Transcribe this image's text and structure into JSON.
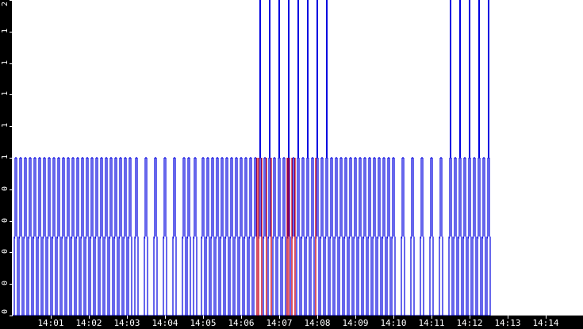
{
  "chart_data": {
    "type": "bar",
    "title": "",
    "xlabel": "",
    "ylabel": "",
    "ylim": [
      0,
      2
    ],
    "grid": false,
    "legend": [],
    "colors": {
      "primary": "#0000e0",
      "highlight": "#e00000",
      "axis_bg": "#000000",
      "axis_text": "#ffffff"
    },
    "y_ticks": [
      {
        "label": "2",
        "value": 2.0
      },
      {
        "label": "1",
        "value": 1.8
      },
      {
        "label": "1",
        "value": 1.6
      },
      {
        "label": "1",
        "value": 1.4
      },
      {
        "label": "1",
        "value": 1.2
      },
      {
        "label": "1",
        "value": 1.0
      },
      {
        "label": "0",
        "value": 0.8
      },
      {
        "label": "0",
        "value": 0.6
      },
      {
        "label": "0",
        "value": 0.4
      },
      {
        "label": "0",
        "value": 0.2
      },
      {
        "label": "0",
        "value": 0.0
      }
    ],
    "x_ticks": [
      {
        "label": "14:01",
        "px": 64
      },
      {
        "label": "14:02",
        "px": 112
      },
      {
        "label": "14:03",
        "px": 160
      },
      {
        "label": "14:04",
        "px": 208
      },
      {
        "label": "14:05",
        "px": 256
      },
      {
        "label": "14:06",
        "px": 304
      },
      {
        "label": "14:07",
        "px": 352
      },
      {
        "label": "14:08",
        "px": 400
      },
      {
        "label": "14:09",
        "px": 448
      },
      {
        "label": "14:10",
        "px": 496
      },
      {
        "label": "14:11",
        "px": 544
      },
      {
        "label": "14:12",
        "px": 592
      },
      {
        "label": "14:13",
        "px": 640
      },
      {
        "label": "14:14",
        "px": 688
      }
    ],
    "series": [
      {
        "name": "pulses",
        "description": "Pulse train: most pulses reach 1.0 with a 0.5 shoulder; tall pulses reach 2.0",
        "pulses_1": [
          20,
          26,
          32,
          38,
          44,
          50,
          56,
          62,
          68,
          74,
          80,
          86,
          92,
          98,
          104,
          110,
          116,
          122,
          128,
          134,
          140,
          146,
          152,
          158,
          164,
          172,
          184,
          196,
          208,
          220,
          232,
          238,
          246,
          256,
          262,
          268,
          274,
          280,
          286,
          292,
          298,
          304,
          310,
          316,
          322,
          328,
          334,
          340,
          346,
          352,
          358,
          364,
          370,
          376,
          382,
          388,
          394,
          400,
          406,
          412,
          418,
          424,
          430,
          436,
          442,
          448,
          454,
          460,
          466,
          472,
          478,
          484,
          490,
          496,
          508,
          520,
          532,
          544,
          556,
          568,
          574,
          580,
          586,
          592,
          598,
          604,
          610,
          616
        ],
        "pulses_2": [
          328,
          340,
          352,
          364,
          376,
          388,
          400,
          412,
          568,
          580,
          592,
          604,
          616
        ],
        "red_pulses": [
          324,
          326,
          330,
          336,
          342,
          362,
          364,
          368,
          372,
          398
        ]
      }
    ]
  }
}
